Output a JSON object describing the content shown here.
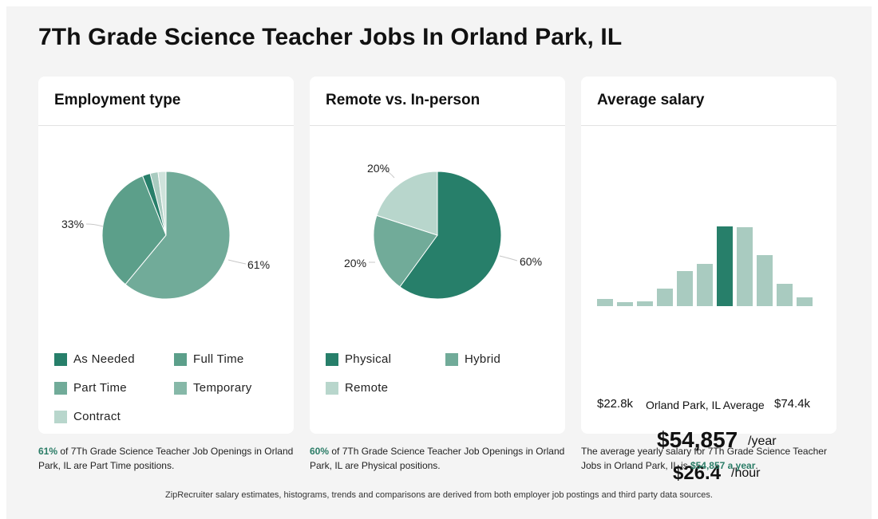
{
  "title": "7Th Grade Science Teacher Jobs In Orland Park, IL",
  "colors": {
    "dark": "#277f6a",
    "mid": "#5c9f8a",
    "light": "#71ab99",
    "pale": "#b8d6cc",
    "paler": "#cfe3dc"
  },
  "cards": {
    "employment": {
      "heading": "Employment type",
      "labels": {
        "big": "61%",
        "small": "33%"
      },
      "legend": [
        "As Needed",
        "Full Time",
        "Part Time",
        "Temporary",
        "Contract"
      ]
    },
    "remote": {
      "heading": "Remote vs. In-person",
      "labels": {
        "physical": "60%",
        "hybrid": "20%",
        "remote": "20%"
      },
      "legend": [
        "Physical",
        "Hybrid",
        "Remote"
      ]
    },
    "salary": {
      "heading": "Average salary",
      "min_label": "$22.8k",
      "mid_label": "Orland Park, IL Average",
      "max_label": "$74.4k",
      "yearly": "$54,857",
      "yearly_unit": "/year",
      "hourly": "$26.4",
      "hourly_unit": "/hour"
    }
  },
  "chart_data": [
    {
      "type": "pie",
      "title": "Employment type",
      "categories": [
        "Part Time",
        "Full Time",
        "As Needed",
        "Temporary",
        "Contract"
      ],
      "values": [
        61,
        33,
        2,
        2,
        2
      ],
      "colors": [
        "#71ab99",
        "#5c9f8a",
        "#277f6a",
        "#a9cbc0",
        "#cfe3dc"
      ]
    },
    {
      "type": "pie",
      "title": "Remote vs. In-person",
      "categories": [
        "Physical",
        "Hybrid",
        "Remote"
      ],
      "values": [
        60,
        20,
        20
      ],
      "colors": [
        "#277f6a",
        "#71ab99",
        "#b8d6cc"
      ]
    },
    {
      "type": "bar",
      "title": "Average salary",
      "values": [
        9,
        5,
        6,
        22,
        44,
        53,
        100,
        99,
        64,
        28,
        11
      ],
      "highlight_index": 6,
      "highlight_label": "Orland Park, IL Average",
      "range_labels": [
        "$22.8k",
        "$74.4k"
      ]
    }
  ],
  "captions": {
    "employment": {
      "highlight": "61%",
      "rest": " of 7Th Grade Science Teacher Job Openings in Orland Park, IL are Part Time positions."
    },
    "remote": {
      "highlight": "60%",
      "rest": " of 7Th Grade Science Teacher Job Openings in Orland Park, IL are Physical positions."
    },
    "salary": {
      "text": "The average yearly salary for 7Th Grade Science Teacher Jobs in Orland Park, IL is ",
      "highlight": "$54,857 a year",
      "end": "."
    }
  },
  "footer": "ZipRecruiter salary estimates, histograms, trends and comparisons are derived from both employer job postings and third party data sources."
}
